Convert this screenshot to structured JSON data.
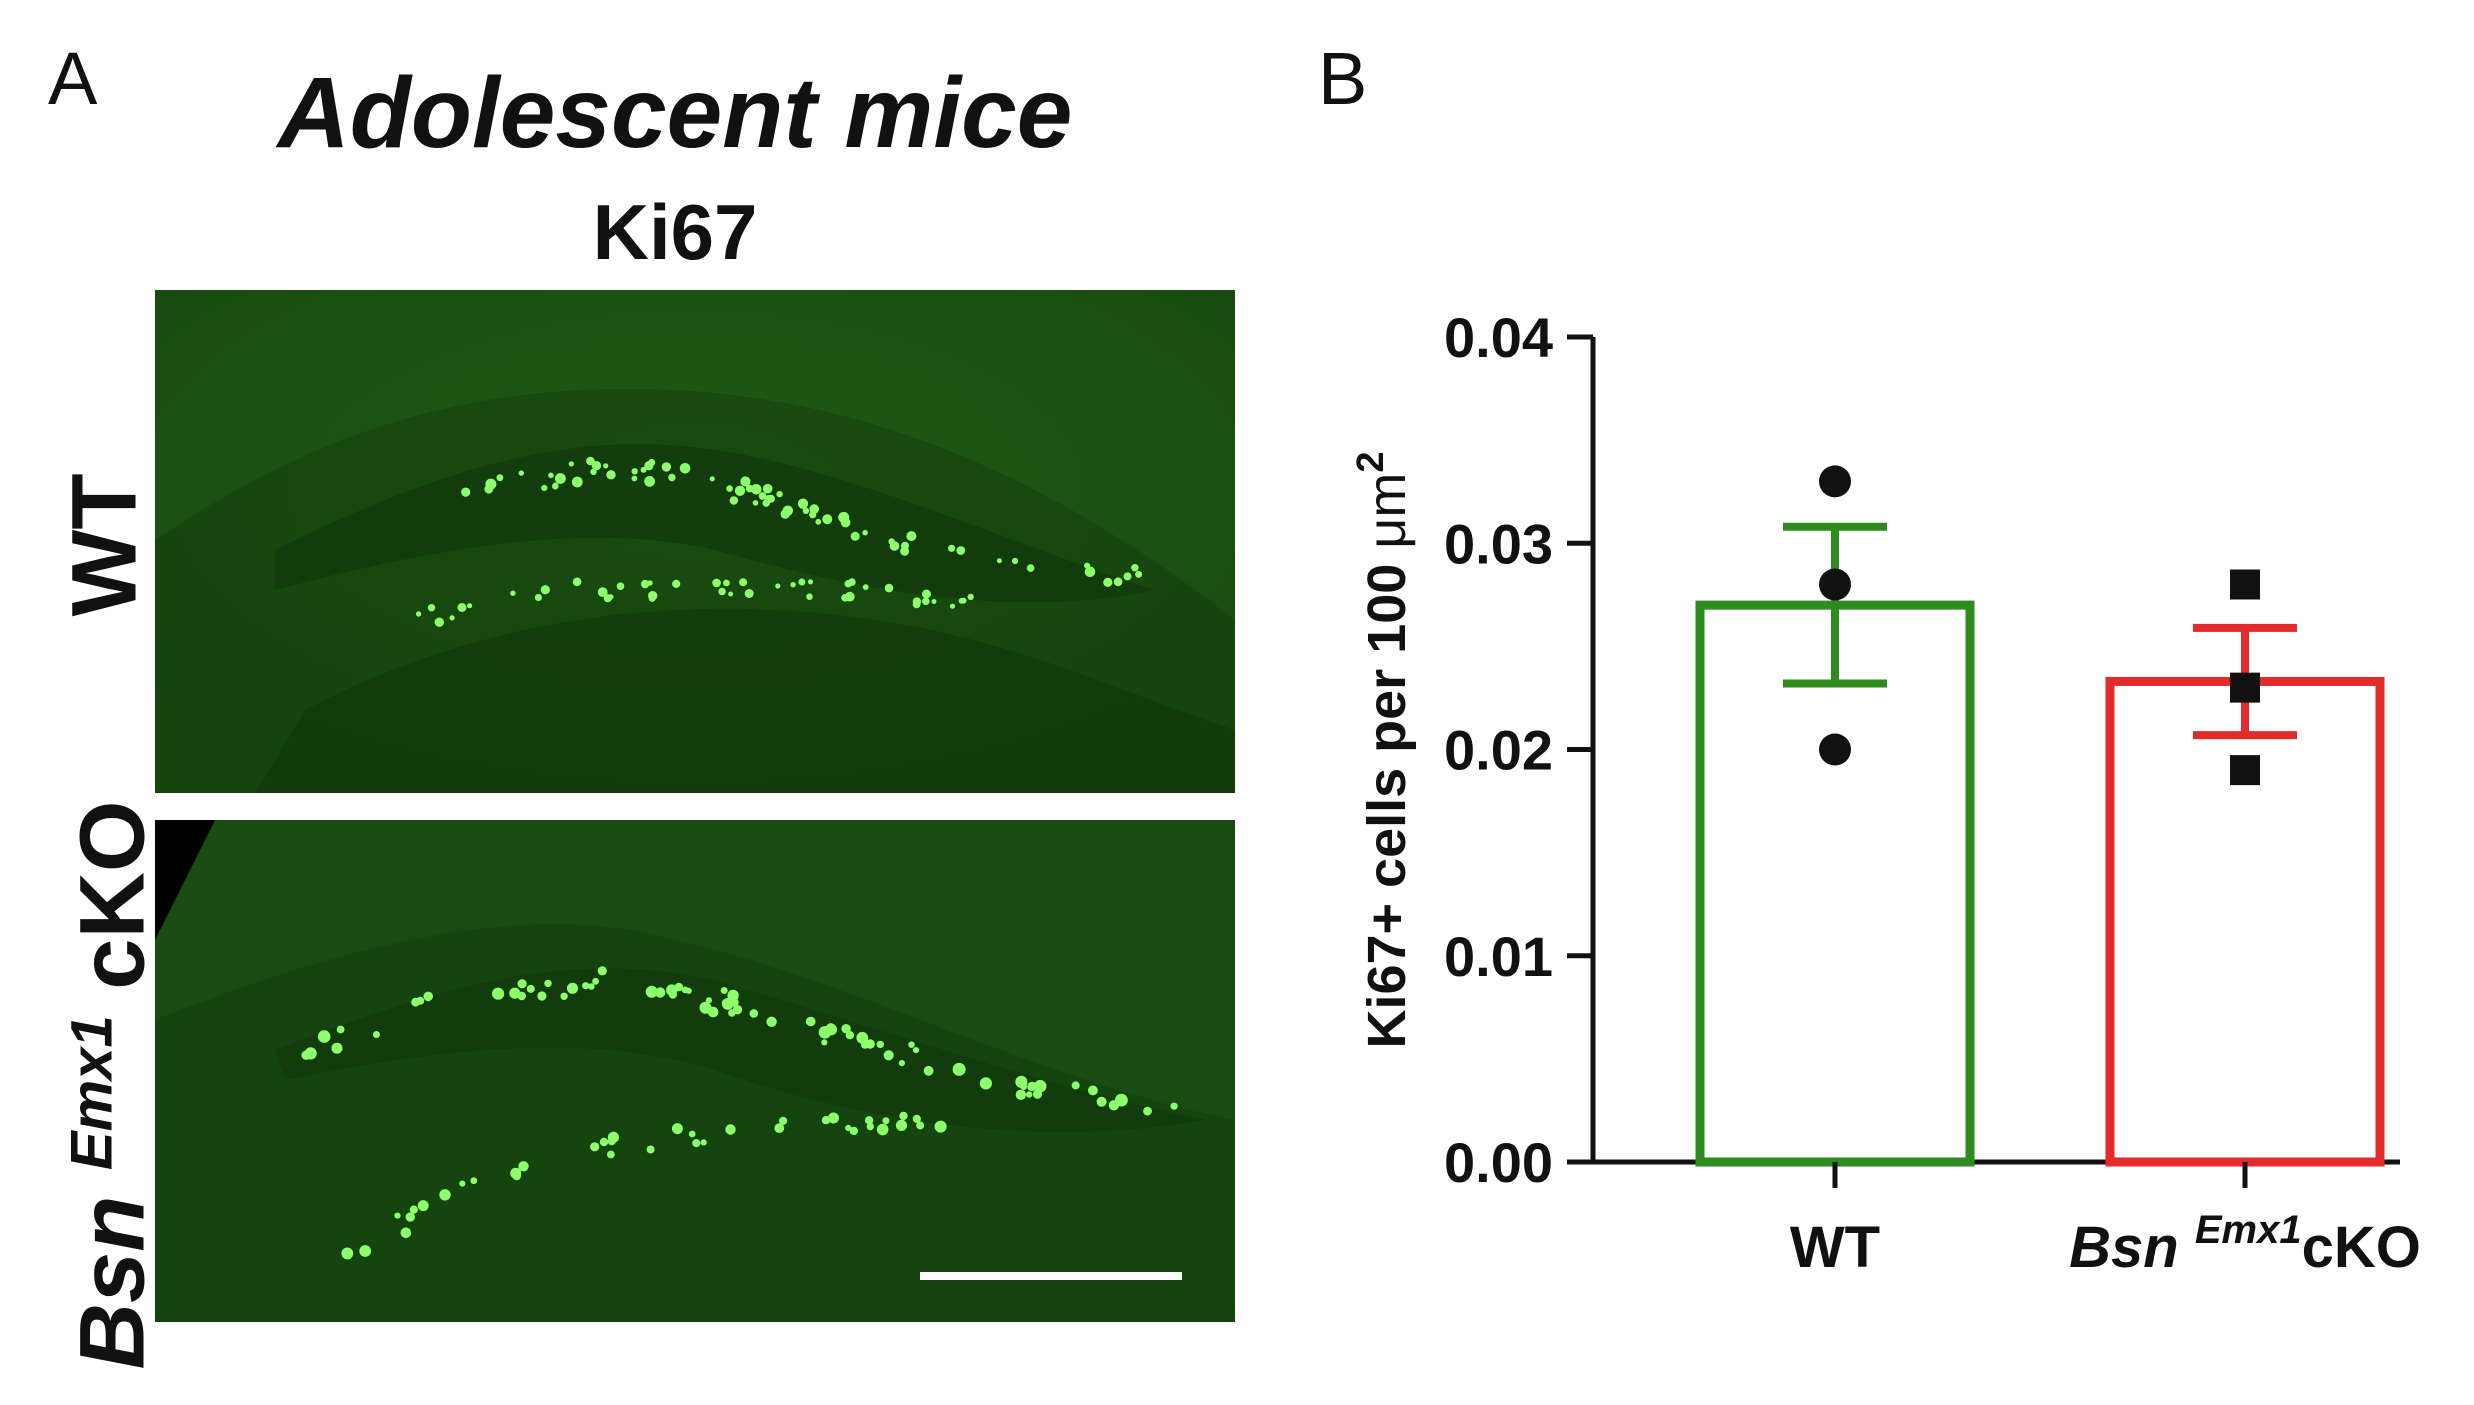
{
  "panel_a": {
    "letter": "A",
    "title": "Adolescent mice",
    "subtitle": "Ki67",
    "row_labels": {
      "wt": "WT",
      "cko_gene": "Bsn",
      "cko_sup": "Emx1",
      "cko_suffix": "cKO"
    }
  },
  "panel_b": {
    "letter": "B"
  },
  "chart_data": {
    "type": "bar",
    "categories": [
      "WT",
      "Bsn Emx1cKO"
    ],
    "category_parts": [
      {
        "main": "WT",
        "sup": "",
        "suffix": ""
      },
      {
        "main": "Bsn",
        "sup": "Emx1",
        "suffix": "cKO"
      }
    ],
    "values": [
      0.027,
      0.0233
    ],
    "sem": [
      0.0038,
      0.0026
    ],
    "points": [
      [
        0.033,
        0.028,
        0.02
      ],
      [
        0.028,
        0.023,
        0.019
      ]
    ],
    "point_markers": [
      "circle",
      "square"
    ],
    "colors": [
      "#2e8b1e",
      "#e32b2b"
    ],
    "ylabel": "Ki67+ cells per 100",
    "ylabel_unit": "μm",
    "ylabel_unit_sup": "2",
    "ylim": [
      0,
      0.04
    ],
    "yticks": [
      0.0,
      0.01,
      0.02,
      0.03,
      0.04
    ],
    "ytick_labels": [
      "0.00",
      "0.01",
      "0.02",
      "0.03",
      "0.04"
    ],
    "grid": false
  }
}
